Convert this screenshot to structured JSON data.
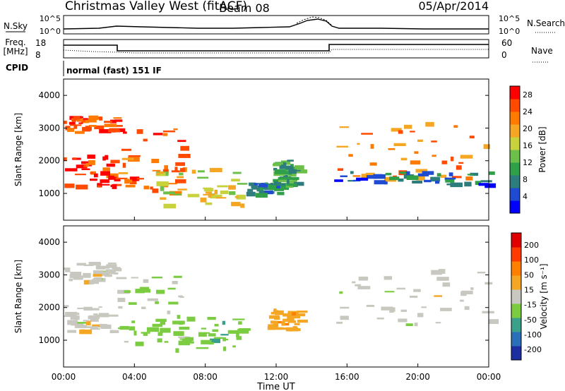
{
  "header": {
    "station": "Christmas Valley West (fitACF)",
    "beam": "Beam 08",
    "date": "05/Apr/2014"
  },
  "noise_panel": {
    "left_label": "N.Sky",
    "right_label": "N.Search",
    "left_ticks": [
      "10^5",
      "10^0"
    ],
    "right_ticks": [
      "10^5",
      "10^0"
    ]
  },
  "freq_panel": {
    "left_label_line1": "Freq.",
    "left_label_line2": "[MHz]",
    "right_label": "Nave",
    "left_ticks": [
      "18",
      "8"
    ],
    "right_ticks": [
      "60",
      "0"
    ]
  },
  "cpid": {
    "label": "CPID",
    "value": "normal (fast) 151 IF"
  },
  "x_axis": {
    "label": "Time UT",
    "ticks": [
      "00:00",
      "04:00",
      "08:00",
      "12:00",
      "16:00",
      "20:00",
      "00:00"
    ]
  },
  "chart_data": [
    {
      "type": "heatmap",
      "title": "",
      "xlabel": "",
      "ylabel": "Slant Range [km]",
      "xlim_hours": [
        0,
        24
      ],
      "ylim_km": [
        180,
        4500
      ],
      "y_ticks": [
        "1000",
        "2000",
        "3000",
        "4000"
      ],
      "colorbar": {
        "label": "Power [dB]",
        "ticks": [
          "4",
          "8",
          "12",
          "16",
          "20",
          "24",
          "28"
        ],
        "range": [
          0,
          30
        ],
        "colors": [
          "#0000ff",
          "#1e4bd2",
          "#2e7d7d",
          "#2f9f48",
          "#6cc04a",
          "#c8d23c",
          "#f5a623",
          "#ff7a00",
          "#ff4a00",
          "#ff0000"
        ]
      },
      "regions": [
        {
          "name": "evening-E-region",
          "t0": 0.0,
          "t1": 3.0,
          "r0": 1200,
          "r1": 2200,
          "level": 27
        },
        {
          "name": "evening-upper-band",
          "t0": 0.0,
          "t1": 3.0,
          "r0": 2900,
          "r1": 3400,
          "level": 25
        },
        {
          "name": "post-3h-slant-band",
          "t0": 3.0,
          "t1": 6.8,
          "r0": 1000,
          "r1": 3000,
          "level": 24
        },
        {
          "name": "dawn-rising-band",
          "t0": 5.0,
          "t1": 10.0,
          "r0": 650,
          "r1": 1800,
          "level": 17
        },
        {
          "name": "midday-patch",
          "t0": 10.2,
          "t1": 12.2,
          "r0": 1000,
          "r1": 1350,
          "level": 8
        },
        {
          "name": "noon-patch",
          "t0": 11.8,
          "t1": 13.2,
          "r0": 1250,
          "r1": 2050,
          "level": 10
        },
        {
          "name": "afternoon-band",
          "t0": 15.0,
          "t1": 24.0,
          "r0": 1500,
          "r1": 3200,
          "level": 22
        },
        {
          "name": "afternoon-lower-band",
          "t0": 15.0,
          "t1": 24.0,
          "r0": 1300,
          "r1": 1700,
          "level": 6
        }
      ]
    },
    {
      "type": "heatmap",
      "title": "",
      "xlabel": "Time UT",
      "ylabel": "Slant Range [km]",
      "xlim_hours": [
        0,
        24
      ],
      "ylim_km": [
        180,
        4500
      ],
      "y_ticks": [
        "1000",
        "2000",
        "3000",
        "4000"
      ],
      "colorbar": {
        "label": "Velocity [m s⁻¹]",
        "ticks": [
          "200",
          "100",
          "50",
          "15",
          "-15",
          "-50",
          "-100",
          "-200"
        ],
        "range": [
          -250,
          250
        ],
        "colors": [
          "#1d2fa0",
          "#2b6fb8",
          "#3aa08a",
          "#7ccc42",
          "#c8c8c0",
          "#f5a623",
          "#ff8000",
          "#ff3b00",
          "#e00000"
        ]
      },
      "regions": [
        {
          "name": "evening-ground-scatter",
          "t0": 0.0,
          "t1": 3.0,
          "r0": 1300,
          "r1": 2100,
          "velocity": 0
        },
        {
          "name": "evening-upper-scatter",
          "t0": 0.0,
          "t1": 3.0,
          "r0": 2800,
          "r1": 3400,
          "velocity": 0
        },
        {
          "name": "post-3h-slant-scatter",
          "t0": 3.0,
          "t1": 6.8,
          "r0": 900,
          "r1": 3000,
          "velocity": -30
        },
        {
          "name": "dawn-band-velocity",
          "t0": 5.0,
          "t1": 10.0,
          "r0": 700,
          "r1": 1800,
          "velocity": -60
        },
        {
          "name": "noon-patch-velocity",
          "t0": 11.5,
          "t1": 13.2,
          "r0": 1300,
          "r1": 2000,
          "velocity": 60
        },
        {
          "name": "afternoon-ground-scatter",
          "t0": 15.0,
          "t1": 24.0,
          "r0": 1500,
          "r1": 3200,
          "velocity": 0
        }
      ]
    }
  ]
}
